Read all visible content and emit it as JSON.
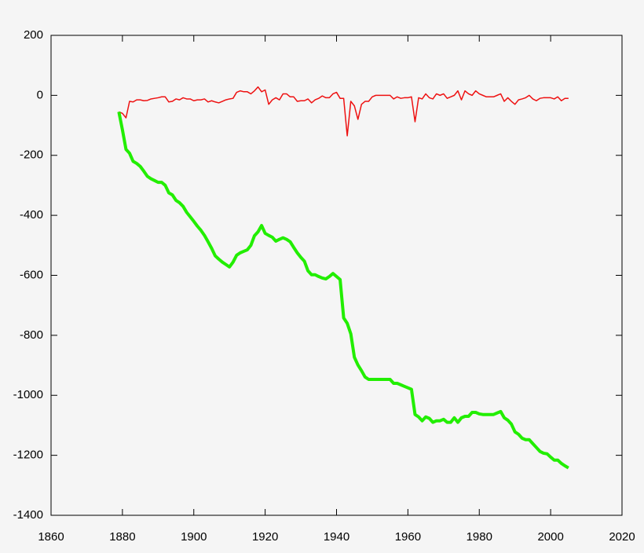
{
  "chart_data": {
    "type": "line",
    "x": [
      1879,
      1880,
      1881,
      1882,
      1883,
      1884,
      1885,
      1886,
      1887,
      1888,
      1889,
      1890,
      1891,
      1892,
      1893,
      1894,
      1895,
      1896,
      1897,
      1898,
      1899,
      1900,
      1901,
      1902,
      1903,
      1904,
      1905,
      1906,
      1907,
      1908,
      1909,
      1910,
      1911,
      1912,
      1913,
      1914,
      1915,
      1916,
      1917,
      1918,
      1919,
      1920,
      1921,
      1922,
      1923,
      1924,
      1925,
      1926,
      1927,
      1928,
      1929,
      1930,
      1931,
      1932,
      1933,
      1934,
      1935,
      1936,
      1937,
      1938,
      1939,
      1940,
      1941,
      1942,
      1943,
      1944,
      1945,
      1946,
      1947,
      1948,
      1949,
      1950,
      1951,
      1952,
      1953,
      1954,
      1955,
      1956,
      1957,
      1958,
      1959,
      1960,
      1961,
      1962,
      1963,
      1964,
      1965,
      1966,
      1967,
      1968,
      1969,
      1970,
      1971,
      1972,
      1973,
      1974,
      1975,
      1976,
      1977,
      1978,
      1979,
      1980,
      1981,
      1982,
      1983,
      1984,
      1985,
      1986,
      1987,
      1988,
      1989,
      1990,
      1991,
      1992,
      1993,
      1994,
      1995,
      1996,
      1997,
      1998,
      1999,
      2000,
      2001,
      2002,
      2003,
      2004,
      2005
    ],
    "series": [
      {
        "color": "#ee1111",
        "values": [
          -55,
          -60,
          -75,
          -20,
          -22,
          -15,
          -15,
          -18,
          -17,
          -12,
          -10,
          -8,
          -5,
          -5,
          -22,
          -20,
          -12,
          -15,
          -8,
          -12,
          -12,
          -18,
          -15,
          -15,
          -12,
          -22,
          -18,
          -22,
          -25,
          -20,
          -15,
          -12,
          -10,
          10,
          15,
          12,
          12,
          5,
          15,
          28,
          12,
          18,
          -30,
          -15,
          -8,
          -15,
          5,
          5,
          -5,
          -5,
          -20,
          -18,
          -18,
          -12,
          -25,
          -15,
          -10,
          -2,
          -8,
          -8,
          5,
          10,
          -10,
          -10,
          -135,
          -20,
          -35,
          -80,
          -30,
          -20,
          -20,
          -5,
          0,
          0,
          0,
          0,
          0,
          -12,
          -5,
          -10,
          -8,
          -8,
          -5,
          -88,
          -8,
          -12,
          5,
          -8,
          -12,
          5,
          0,
          5,
          -10,
          -5,
          0,
          15,
          -15,
          15,
          5,
          0,
          15,
          5,
          0,
          -5,
          -5,
          -5,
          0,
          5,
          -20,
          -8,
          -20,
          -30,
          -15,
          -12,
          -8,
          0,
          -12,
          -18,
          -10,
          -8,
          -8,
          -8,
          -12,
          -5,
          -18,
          -10,
          -10
        ]
      },
      {
        "color": "#22ee00",
        "values": [
          -55,
          -115,
          -180,
          -193,
          -220,
          -227,
          -237,
          -253,
          -270,
          -278,
          -284,
          -290,
          -290,
          -300,
          -325,
          -332,
          -350,
          -358,
          -370,
          -390,
          -405,
          -420,
          -436,
          -450,
          -467,
          -488,
          -510,
          -535,
          -546,
          -556,
          -564,
          -572,
          -556,
          -533,
          -525,
          -520,
          -515,
          -500,
          -468,
          -455,
          -434,
          -460,
          -467,
          -473,
          -486,
          -480,
          -475,
          -480,
          -488,
          -507,
          -525,
          -540,
          -553,
          -585,
          -598,
          -598,
          -604,
          -609,
          -612,
          -604,
          -594,
          -604,
          -614,
          -742,
          -760,
          -795,
          -873,
          -899,
          -918,
          -939,
          -947,
          -947,
          -947,
          -947,
          -947,
          -947,
          -947,
          -960,
          -960,
          -965,
          -970,
          -975,
          -980,
          -1064,
          -1072,
          -1085,
          -1072,
          -1077,
          -1090,
          -1085,
          -1085,
          -1080,
          -1090,
          -1090,
          -1075,
          -1090,
          -1075,
          -1070,
          -1070,
          -1057,
          -1057,
          -1062,
          -1064,
          -1064,
          -1064,
          -1064,
          -1059,
          -1054,
          -1075,
          -1083,
          -1096,
          -1122,
          -1130,
          -1143,
          -1148,
          -1148,
          -1161,
          -1174,
          -1187,
          -1193,
          -1195,
          -1206,
          -1216,
          -1216,
          -1227,
          -1235,
          -1242
        ]
      }
    ],
    "xlim": [
      1860,
      2020
    ],
    "xticks": [
      1860,
      1880,
      1900,
      1920,
      1940,
      1960,
      1980,
      2000,
      2020
    ],
    "ylim": [
      -1400,
      200
    ],
    "yticks": [
      -1400,
      -1200,
      -1000,
      -800,
      -600,
      -400,
      -200,
      0,
      200
    ],
    "grid": false
  }
}
